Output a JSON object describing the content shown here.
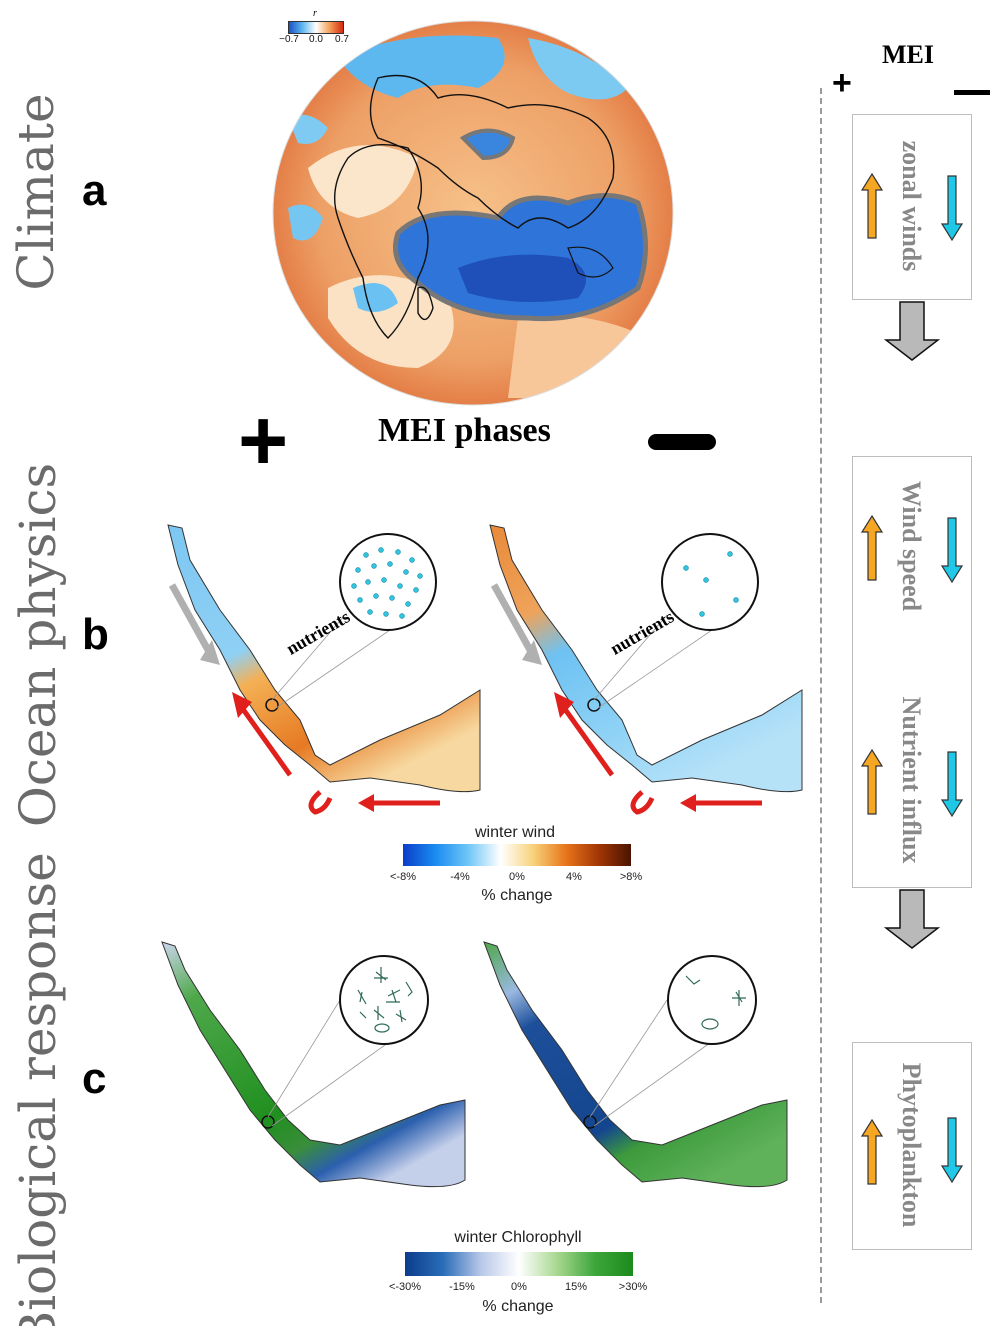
{
  "labels": {
    "climate": "Climate",
    "ocean_physics": "Ocean physics",
    "biological_response": "Biological response",
    "a": "a",
    "b": "b",
    "c": "c"
  },
  "phases": {
    "title": "MEI phases",
    "plus": "+",
    "minus": "—"
  },
  "globe_legend": {
    "symbol": "r",
    "ticks": [
      "−0.7",
      "0.0",
      "0.7"
    ]
  },
  "nutrients_label": "nutrients",
  "wind_colorbar": {
    "title": "winter wind",
    "ticks": [
      "<-8%",
      "-4%",
      "0%",
      "4%",
      ">8%"
    ],
    "unit": "% change",
    "colors": [
      "#0b3ec9",
      "#1a8cf0",
      "#6fc6f7",
      "#ffffff",
      "#f7d27a",
      "#e8751a",
      "#a23606",
      "#4a1400"
    ]
  },
  "chl_colorbar": {
    "title": "winter Chlorophyll",
    "ticks": [
      "<-30%",
      "-15%",
      "0%",
      "15%",
      ">30%"
    ],
    "unit": "% change",
    "colors": [
      "#0c3d8c",
      "#2a6db8",
      "#b8c8e8",
      "#ffffff",
      "#a8d890",
      "#3ca63a",
      "#1d8a1d"
    ]
  },
  "right_panel": {
    "header": "MEI",
    "plus": "+",
    "minus": "—",
    "boxes": [
      {
        "label": "zonal winds"
      },
      {
        "label": "Wind speed"
      },
      {
        "label": "Nutrient influx"
      },
      {
        "label": "Phytoplankton"
      }
    ],
    "up_color": "#f5a623",
    "down_color": "#1ec8e6"
  }
}
